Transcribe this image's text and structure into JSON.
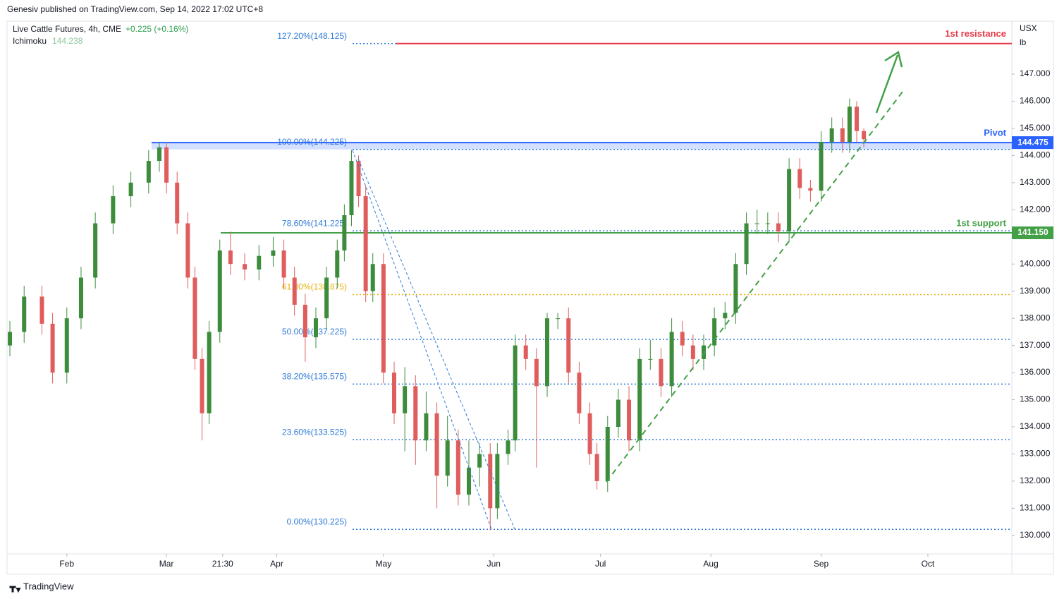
{
  "header": {
    "publisher": "Genesiv published on TradingView.com, Sep 14, 2022 17:02 UTC+8"
  },
  "chart_data": {
    "type": "candlestick",
    "title": "Live Cattle Futures, 4h, CME",
    "change": "+0.225 (+0.16%)",
    "indicator": {
      "name": "Ichimoku",
      "value": 144.238
    },
    "currency": "USX",
    "unit": "lb",
    "up_color": "#3c8c3c",
    "down_color": "#e05d5d",
    "x": [
      16,
      20,
      25,
      28,
      32,
      36,
      40,
      45,
      50,
      55,
      58,
      60,
      63,
      66,
      68,
      70,
      72,
      75,
      78,
      82,
      86,
      90,
      93,
      96,
      99,
      102,
      105,
      108,
      110,
      112,
      114,
      116,
      118,
      121,
      124,
      127,
      130,
      133,
      136,
      139,
      142,
      145,
      148,
      151,
      153,
      156,
      158,
      161,
      164,
      167,
      170,
      173,
      176,
      179,
      181,
      184,
      187,
      190,
      193,
      196,
      199,
      202,
      205,
      208,
      211,
      214,
      217,
      220,
      223,
      226,
      229,
      232,
      235,
      238,
      241,
      244,
      247,
      250,
      252,
      254,
      256
    ],
    "open": [
      137,
      137.5,
      138.8,
      137.8,
      136,
      138,
      139.5,
      141.5,
      142.5,
      143,
      143.8,
      144.3,
      143,
      141.5,
      139.5,
      136.5,
      134.5,
      137.5,
      140.5,
      140,
      139.8,
      140.3,
      140.5,
      139.5,
      138.5,
      137.3,
      138,
      139.5,
      140.5,
      141.8,
      143.8,
      142.5,
      139,
      140,
      136,
      134.5,
      135.5,
      133.5,
      134.5,
      132.2,
      133.5,
      131.5,
      132.5,
      133,
      131,
      133,
      133.5,
      137,
      136.5,
      135.5,
      138,
      138,
      136,
      134.5,
      133,
      132,
      134,
      135,
      133.5,
      136.5,
      136.5,
      135.5,
      137.5,
      137,
      136.5,
      137,
      138,
      138.2,
      140,
      141.5,
      141.5,
      141.5,
      141.2,
      143.5,
      142.8,
      142.7,
      144.5,
      145,
      144.5,
      145.8,
      144.9
    ],
    "high": [
      137.9,
      139.2,
      139.2,
      138.2,
      138.4,
      139.9,
      141.9,
      142.9,
      143.4,
      144.2,
      144.5,
      144.5,
      143.4,
      141.9,
      139.9,
      136.9,
      137.9,
      140.9,
      141.2,
      140.4,
      140.7,
      141,
      140.9,
      139.9,
      138.9,
      138.4,
      139.9,
      140.9,
      142.2,
      144.2,
      144,
      142.9,
      140.4,
      140.4,
      136.4,
      136.2,
      135.9,
      135.3,
      134.9,
      134.4,
      133.9,
      133.5,
      133.4,
      133.4,
      133.4,
      133.9,
      137.4,
      137.4,
      136.9,
      138.2,
      138.2,
      138.4,
      136.4,
      134.9,
      133.4,
      134.4,
      135.4,
      135.5,
      136.9,
      137.2,
      136.9,
      138,
      137.9,
      137.4,
      137.4,
      138.4,
      138.6,
      140.4,
      141.9,
      142,
      141.9,
      141.9,
      143.9,
      143.9,
      143.1,
      144.9,
      145.4,
      145.4,
      146.1,
      146,
      145
    ],
    "low": [
      136.6,
      137.1,
      137.4,
      135.6,
      135.6,
      137.6,
      139.1,
      141.1,
      142.1,
      142.6,
      143.4,
      142.6,
      141.1,
      139.1,
      136.1,
      133.5,
      134.1,
      137.1,
      139.6,
      139.4,
      139.4,
      139.9,
      139.1,
      138.1,
      136.4,
      136.9,
      137.6,
      139.1,
      140.1,
      141.4,
      142.1,
      138.6,
      138.6,
      135.6,
      134.1,
      133.1,
      132.6,
      133.1,
      131,
      131.8,
      131.1,
      131.1,
      131.8,
      130.2,
      130.6,
      132.6,
      133.1,
      136.1,
      132.5,
      135.1,
      137.6,
      135.6,
      134.1,
      132.6,
      131.7,
      131.6,
      133.6,
      133.1,
      133.1,
      136.1,
      135.1,
      135.1,
      136.6,
      136.1,
      136.1,
      136.6,
      137.6,
      137.8,
      139.6,
      141.1,
      141.1,
      140.8,
      140.8,
      142.4,
      142.3,
      142.3,
      144.1,
      144.1,
      144.1,
      144.5,
      144.3
    ],
    "close": [
      137.5,
      138.8,
      137.8,
      136,
      138,
      139.5,
      141.5,
      142.5,
      143,
      143.8,
      144.3,
      143,
      141.5,
      139.5,
      136.5,
      134.5,
      137.5,
      140.5,
      140,
      139.8,
      140.3,
      140.5,
      139.5,
      138.5,
      137.3,
      138,
      139.5,
      140.5,
      141.8,
      143.8,
      142.5,
      139,
      140,
      136,
      134.5,
      135.5,
      133.5,
      134.5,
      132.2,
      133.5,
      131.5,
      132.5,
      133,
      131,
      133,
      133.5,
      137,
      136.5,
      135.5,
      138,
      138,
      136,
      134.5,
      133,
      132,
      134,
      135,
      133.5,
      136.5,
      136.5,
      135.5,
      137.5,
      137,
      136.5,
      137,
      138,
      138.2,
      140,
      141.5,
      141.5,
      141.5,
      141.2,
      143.5,
      142.8,
      142.7,
      144.5,
      145,
      144.5,
      145.8,
      144.9,
      144.6
    ],
    "xlim": [
      15.2,
      297.6
    ],
    "xticks": [
      {
        "value": 32,
        "label": "Feb"
      },
      {
        "value": 60,
        "label": "Mar"
      },
      {
        "value": 75.8,
        "label": "21:30"
      },
      {
        "value": 91,
        "label": "Apr"
      },
      {
        "value": 121,
        "label": "May"
      },
      {
        "value": 152,
        "label": "Jun"
      },
      {
        "value": 182,
        "label": "Jul"
      },
      {
        "value": 213,
        "label": "Aug"
      },
      {
        "value": 244,
        "label": "Sep"
      },
      {
        "value": 274,
        "label": "Oct"
      }
    ],
    "ylim": [
      129.32,
      148.95
    ],
    "yticks": [
      {
        "value": 130,
        "label": "130.000"
      },
      {
        "value": 131,
        "label": "131.000"
      },
      {
        "value": 132,
        "label": "132.000"
      },
      {
        "value": 133,
        "label": "133.000"
      },
      {
        "value": 134,
        "label": "134.000"
      },
      {
        "value": 135,
        "label": "135.000"
      },
      {
        "value": 136,
        "label": "136.000"
      },
      {
        "value": 137,
        "label": "137.000"
      },
      {
        "value": 138,
        "label": "138.000"
      },
      {
        "value": 139,
        "label": "139.000"
      },
      {
        "value": 140,
        "label": "140.000"
      },
      {
        "value": 141,
        "label": "141.000"
      },
      {
        "value": 142,
        "label": "142.000"
      },
      {
        "value": 143,
        "label": "143.000"
      },
      {
        "value": 144,
        "label": "144.000"
      },
      {
        "value": 145,
        "label": "145.000"
      },
      {
        "value": 146,
        "label": "146.000"
      },
      {
        "value": 147,
        "label": "147.000"
      }
    ],
    "fib": [
      {
        "value": 148.125,
        "label": "127.20%(148.125)",
        "color": "#2f7bd8"
      },
      {
        "value": 144.225,
        "label": "100.00%(144.225)",
        "color": "#2f7bd8"
      },
      {
        "value": 141.225,
        "label": "78.60%(141.225)",
        "color": "#2f7bd8"
      },
      {
        "value": 138.875,
        "label": "61.80%(138.875)",
        "color": "#e8b10c"
      },
      {
        "value": 137.225,
        "label": "50.00%(137.225)",
        "color": "#2f7bd8"
      },
      {
        "value": 135.575,
        "label": "38.20%(135.575)",
        "color": "#2f7bd8"
      },
      {
        "value": 133.525,
        "label": "23.60%(133.525)",
        "color": "#2f7bd8"
      },
      {
        "value": 130.225,
        "label": "0.00%(130.225)",
        "color": "#2f7bd8"
      }
    ],
    "levels": [
      {
        "name": "1st resistance",
        "value": 148.125,
        "color": "#e53946"
      },
      {
        "name": "Pivot",
        "value": 144.475,
        "label": "144.475",
        "color": "#2962ff"
      },
      {
        "name": "1st support",
        "value": 141.15,
        "label": "141.150",
        "color": "#43a047"
      }
    ]
  },
  "footer": {
    "brand": "TradingView"
  }
}
